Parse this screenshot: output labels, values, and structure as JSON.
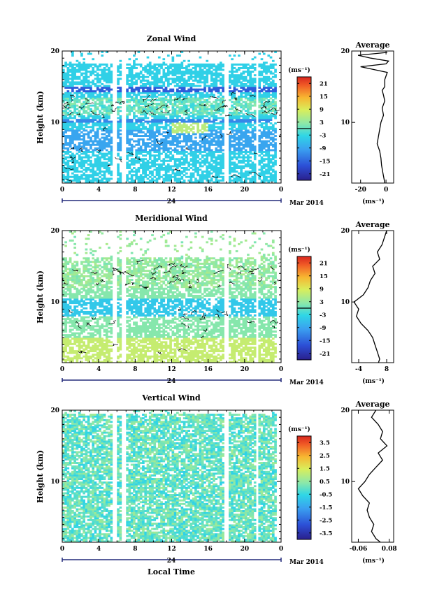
{
  "figure": {
    "xlabel": "Local Time",
    "date_label": "Mar 2014",
    "day_label": "24",
    "unit_label": "(ms⁻¹)",
    "ylabel": "Height (km)",
    "average_title": "Average"
  },
  "chart_data": [
    {
      "type": "heatmap",
      "title": "Zonal Wind",
      "ylabel": "Height (km)",
      "xlabel": "",
      "x_ticks": [
        "0",
        "4",
        "8",
        "12",
        "16",
        "20",
        "0"
      ],
      "x_range_hours": [
        0,
        24
      ],
      "y_ticks": [
        "20",
        "10"
      ],
      "y_range_km": [
        1.5,
        20
      ],
      "colorbar": {
        "unit": "(ms⁻¹)",
        "ticks": [
          "21",
          "15",
          "9",
          "3",
          "-3",
          "-9",
          "-15",
          "-21"
        ],
        "range": [
          -24,
          24
        ]
      },
      "contour_level": 0,
      "average_profile": {
        "title": "Average",
        "x_ticks": [
          "-20",
          "0"
        ],
        "xlim": [
          -27,
          6
        ],
        "y_ticks": [
          "20",
          "10"
        ],
        "height_km": [
          1.5,
          2,
          3,
          4,
          5,
          6,
          7,
          8,
          9,
          10,
          11,
          12,
          13,
          13.8,
          14.5,
          15,
          16,
          17,
          17.8,
          18.2,
          18.6,
          19,
          19.4,
          19.8
        ],
        "wind": [
          -1,
          -1.5,
          -2.5,
          -3.5,
          -4,
          -5,
          -7,
          -6,
          -5,
          -4,
          -2,
          -3,
          -1,
          -2,
          -3,
          -1,
          -1,
          1,
          -20,
          0,
          2,
          -12,
          -22,
          1
        ]
      }
    },
    {
      "type": "heatmap",
      "title": "Meridional Wind",
      "ylabel": "Height (km)",
      "xlabel": "",
      "x_ticks": [
        "0",
        "4",
        "8",
        "12",
        "16",
        "20",
        "0"
      ],
      "x_range_hours": [
        0,
        24
      ],
      "y_ticks": [
        "20",
        "10"
      ],
      "y_range_km": [
        1.5,
        20
      ],
      "colorbar": {
        "unit": "(ms⁻¹)",
        "ticks": [
          "21",
          "15",
          "9",
          "3",
          "-3",
          "-9",
          "-15",
          "-21"
        ],
        "range": [
          -24,
          24
        ]
      },
      "contour_level": 0,
      "average_profile": {
        "title": "Average",
        "x_ticks": [
          "-4",
          "8"
        ],
        "xlim": [
          -7,
          11
        ],
        "y_ticks": [
          "20",
          "10"
        ],
        "height_km": [
          1.5,
          2,
          3,
          4,
          5,
          6,
          7,
          8,
          9,
          10,
          11,
          12,
          13,
          14,
          15,
          16,
          17,
          18,
          19,
          20
        ],
        "wind": [
          4.5,
          5,
          4,
          3,
          2,
          0,
          -3,
          -5,
          -4,
          -6,
          -2,
          0,
          1,
          3,
          2,
          5,
          4,
          6,
          7,
          8
        ]
      }
    },
    {
      "type": "heatmap",
      "title": "Vertical Wind",
      "ylabel": "Height (km)",
      "xlabel": "Local Time",
      "x_ticks": [
        "0",
        "4",
        "8",
        "12",
        "16",
        "20",
        "0"
      ],
      "x_range_hours": [
        0,
        24
      ],
      "y_ticks": [
        "20",
        "10"
      ],
      "y_range_km": [
        1.5,
        20
      ],
      "colorbar": {
        "unit": "(ms⁻¹)",
        "ticks": [
          "3.5",
          "2.5",
          "1.5",
          "0.5",
          "-0.5",
          "-1.5",
          "-2.5",
          "-3.5"
        ],
        "range": [
          -4,
          4
        ]
      },
      "average_profile": {
        "title": "Average",
        "x_ticks": [
          "-0.06",
          "0.08"
        ],
        "xlim": [
          -0.09,
          0.1
        ],
        "y_ticks": [
          "20",
          "10"
        ],
        "height_km": [
          1.5,
          2,
          3,
          4,
          5,
          6,
          7,
          8,
          9,
          10,
          11,
          12,
          13,
          14,
          15,
          16,
          17,
          18,
          19,
          20
        ],
        "wind": [
          0.04,
          0.02,
          0.0,
          0.01,
          -0.01,
          -0.02,
          -0.01,
          -0.04,
          -0.06,
          -0.03,
          -0.01,
          0.02,
          0.05,
          0.03,
          0.07,
          0.04,
          0.05,
          0.03,
          0.0,
          0.02
        ]
      }
    }
  ]
}
